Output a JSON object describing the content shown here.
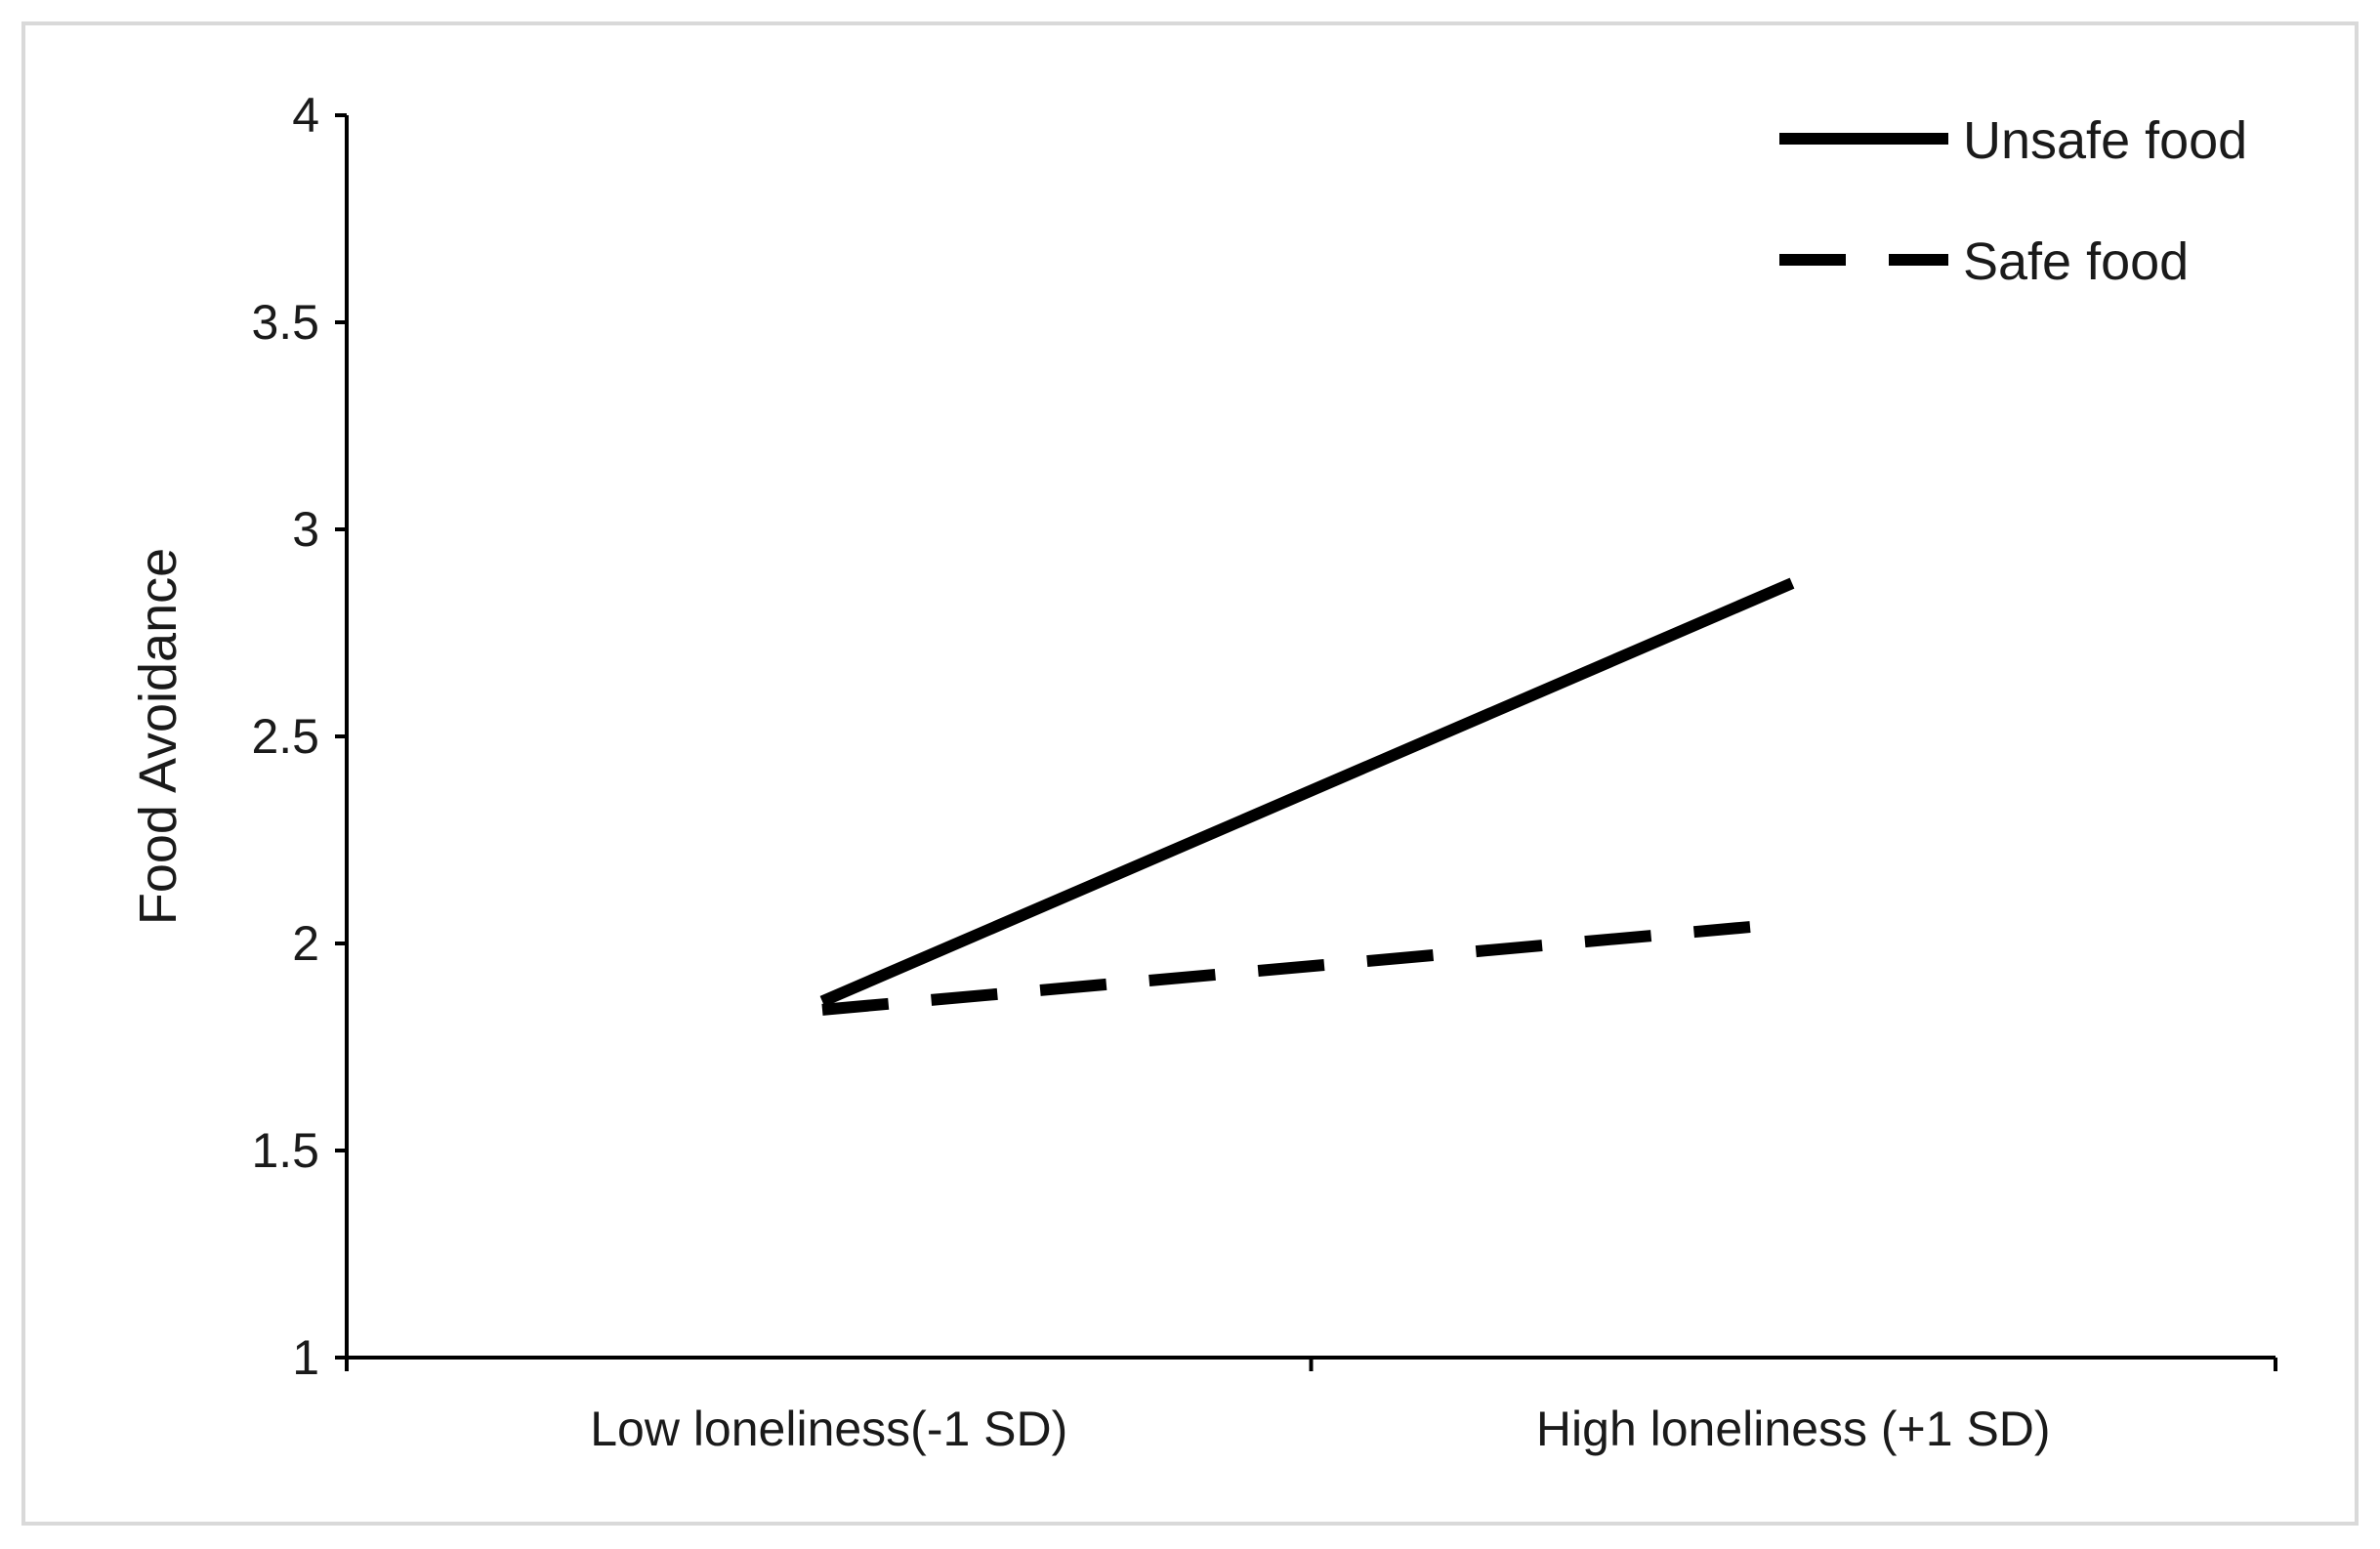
{
  "chart_data": {
    "type": "line",
    "title": "",
    "xlabel": "",
    "ylabel": "Food Avoidance",
    "categories": [
      "Low loneliness(-1 SD)",
      "High loneliness (+1 SD)"
    ],
    "ylim": [
      1,
      4
    ],
    "yticks": [
      "1",
      "1.5",
      "2",
      "2.5",
      "3",
      "3.5",
      "4"
    ],
    "grid": false,
    "legend_position": "top-right",
    "series": [
      {
        "name": "Unsafe food",
        "values": [
          1.86,
          2.87
        ],
        "style": "solid",
        "color": "#000000"
      },
      {
        "name": "Safe food",
        "values": [
          1.84,
          2.04
        ],
        "style": "dashed",
        "color": "#000000"
      }
    ]
  }
}
